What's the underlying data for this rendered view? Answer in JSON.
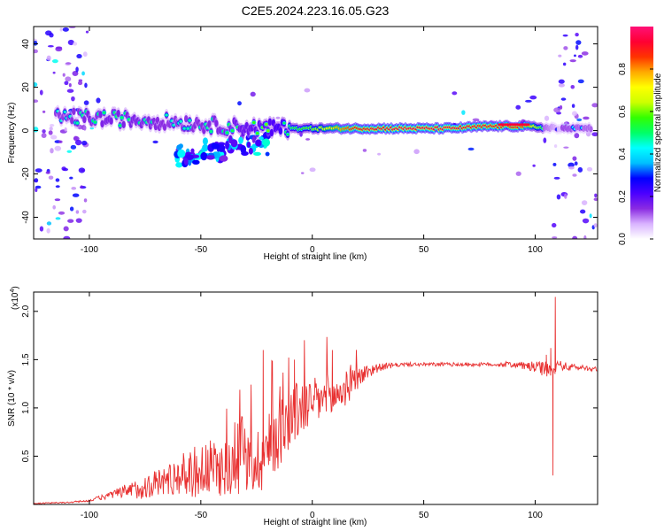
{
  "title": "C2E5.2024.223.16.05.G23",
  "chart_data": [
    {
      "type": "heatmap",
      "title": "C2E5.2024.223.16.05.G23",
      "xlabel": "Height of straight line (km)",
      "ylabel": "Frequency (Hz)",
      "xlim": [
        -125,
        128
      ],
      "ylim": [
        -50,
        48
      ],
      "xticks": [
        -100,
        -50,
        0,
        50,
        100
      ],
      "yticks": [
        40,
        20,
        0,
        -20,
        -40
      ],
      "colorbar": {
        "label": "Normalized spectral amplitude",
        "range": [
          0,
          1
        ],
        "ticks": [
          0.0,
          0.2,
          0.4,
          0.6,
          0.8
        ],
        "colors": [
          "#ffffff",
          "#d9b3ff",
          "#8a2be2",
          "#4b00ff",
          "#0000ff",
          "#00bfff",
          "#00ffff",
          "#00ff66",
          "#33ff00",
          "#ccff00",
          "#ffff00",
          "#ffaa00",
          "#ff3300",
          "#ff0033",
          "#ff1177"
        ]
      },
      "ridge": {
        "description_points": [
          {
            "x": -110,
            "freq": 6,
            "amp": 0.3
          },
          {
            "x": -100,
            "freq": 6,
            "amp": 0.35
          },
          {
            "x": -80,
            "freq": 5,
            "amp": 0.35
          },
          {
            "x": -60,
            "freq": 4,
            "amp": 0.3
          },
          {
            "x": -40,
            "freq": 2,
            "amp": 0.35
          },
          {
            "x": -20,
            "freq": 1,
            "amp": 0.45
          },
          {
            "x": 0,
            "freq": 1,
            "amp": 0.6
          },
          {
            "x": 20,
            "freq": 1,
            "amp": 0.9
          },
          {
            "x": 40,
            "freq": 1,
            "amp": 0.95
          },
          {
            "x": 60,
            "freq": 1,
            "amp": 0.95
          },
          {
            "x": 80,
            "freq": 2,
            "amp": 0.9
          },
          {
            "x": 95,
            "freq": 2,
            "amp": 0.85
          },
          {
            "x": 110,
            "freq": 1,
            "amp": 0.3
          },
          {
            "x": 122,
            "freq": 1,
            "amp": 0.25
          }
        ]
      }
    },
    {
      "type": "line",
      "xlabel": "Height of straight line (km)",
      "ylabel": "SNR (10 * v/v)",
      "multiplier_label": "(x10",
      "multiplier_exp": "4",
      "multiplier_close": ")",
      "xlim": [
        -125,
        128
      ],
      "ylim": [
        0,
        2.2
      ],
      "xticks": [
        -100,
        -50,
        0,
        50,
        100
      ],
      "yticks": [
        0.5,
        1.0,
        1.5,
        2.0
      ],
      "ytick_labels": [
        "0.5",
        "1.0",
        "1.5",
        "2.0"
      ],
      "color": "#e83030",
      "envelope": {
        "x": [
          -125,
          -110,
          -100,
          -90,
          -80,
          -70,
          -60,
          -50,
          -40,
          -30,
          -25,
          -20,
          -15,
          -10,
          -5,
          0,
          5,
          10,
          15,
          20,
          25,
          30,
          40,
          50,
          60,
          70,
          80,
          90,
          100,
          105,
          107,
          108,
          110,
          115,
          120,
          128
        ],
        "y": [
          0.01,
          0.02,
          0.04,
          0.1,
          0.15,
          0.22,
          0.3,
          0.35,
          0.38,
          0.4,
          0.45,
          0.55,
          0.75,
          0.9,
          1.0,
          1.05,
          1.1,
          1.12,
          1.2,
          1.3,
          1.38,
          1.42,
          1.45,
          1.45,
          1.45,
          1.45,
          1.45,
          1.45,
          1.42,
          1.4,
          1.38,
          1.36,
          1.45,
          1.42,
          1.42,
          1.4
        ]
      },
      "noise_amplitude": {
        "x": [
          -125,
          -100,
          -90,
          -80,
          -60,
          -50,
          -40,
          -30,
          -20,
          -10,
          0,
          10,
          20,
          30,
          40,
          80,
          95,
          100,
          105,
          110,
          128
        ],
        "y": [
          0.005,
          0.01,
          0.04,
          0.1,
          0.2,
          0.3,
          0.3,
          0.3,
          0.4,
          0.35,
          0.25,
          0.25,
          0.12,
          0.04,
          0.02,
          0.02,
          0.04,
          0.06,
          0.08,
          0.05,
          0.02
        ]
      },
      "spikes": [
        {
          "x": -22,
          "y": 1.6
        },
        {
          "x": -8,
          "y": 1.5
        },
        {
          "x": 9,
          "y": 1.6
        },
        {
          "x": 105,
          "y": 1.55
        },
        {
          "x": 107,
          "y": 1.62
        },
        {
          "x": 108,
          "y": 0.3
        },
        {
          "x": 109,
          "y": 2.15
        }
      ]
    }
  ]
}
